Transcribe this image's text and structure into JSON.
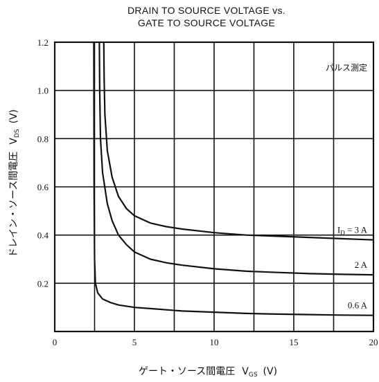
{
  "chart_data": {
    "type": "line",
    "title_line1": "DRAIN TO SOURCE VOLTAGE vs.",
    "title_line2": "GATE TO SOURCE VOLTAGE",
    "xlabel_main": "ゲート・ソース間電圧",
    "xlabel_symbol": "V",
    "xlabel_sub": "GS",
    "xlabel_unit": "(V)",
    "ylabel_main": "ドレイン・ソース間電圧",
    "ylabel_symbol": "V",
    "ylabel_sub": "DS",
    "ylabel_unit": "(V)",
    "note": "パルス測定",
    "xlim": [
      0,
      20
    ],
    "ylim": [
      0,
      1.2
    ],
    "x_ticks": [
      {
        "value": 0,
        "label": "0"
      },
      {
        "value": 5,
        "label": "5"
      },
      {
        "value": 10,
        "label": "10"
      },
      {
        "value": 15,
        "label": "15"
      },
      {
        "value": 20,
        "label": "20"
      }
    ],
    "y_ticks": [
      {
        "value": 0.2,
        "label": "0.2"
      },
      {
        "value": 0.4,
        "label": "0.4"
      },
      {
        "value": 0.6,
        "label": "0.6"
      },
      {
        "value": 0.8,
        "label": "0.8"
      },
      {
        "value": 1.0,
        "label": "1.0"
      },
      {
        "value": 1.2,
        "label": "1.2"
      }
    ],
    "grid_x": [
      2.5,
      5,
      7.5,
      10,
      12.5,
      15,
      17.5
    ],
    "grid_y": [
      0.2,
      0.4,
      0.6,
      0.8,
      1.0
    ],
    "series": [
      {
        "label_main": "I",
        "label_sub": "D",
        "label_rest": " = 3 A",
        "x": [
          3.08,
          3.1,
          3.15,
          3.3,
          3.6,
          4.0,
          4.5,
          5.0,
          6.0,
          7.0,
          8.0,
          10.0,
          12.0,
          14.0,
          16.0,
          18.0,
          20.0
        ],
        "y": [
          1.2,
          1.05,
          0.9,
          0.75,
          0.64,
          0.56,
          0.51,
          0.48,
          0.45,
          0.435,
          0.425,
          0.41,
          0.4,
          0.395,
          0.39,
          0.385,
          0.38
        ]
      },
      {
        "label_main": "2 A",
        "label_sub": "",
        "label_rest": "",
        "x": [
          2.8,
          2.82,
          2.87,
          3.0,
          3.3,
          3.6,
          4.0,
          4.5,
          5.0,
          6.0,
          7.0,
          8.0,
          10.0,
          12.0,
          14.0,
          16.0,
          18.0,
          20.0
        ],
        "y": [
          1.2,
          1.0,
          0.8,
          0.66,
          0.53,
          0.46,
          0.4,
          0.36,
          0.33,
          0.3,
          0.285,
          0.275,
          0.26,
          0.25,
          0.245,
          0.24,
          0.237,
          0.235
        ]
      },
      {
        "label_main": "0.6 A",
        "label_sub": "",
        "label_rest": "",
        "x": [
          2.45,
          2.47,
          2.5,
          2.55,
          2.7,
          3.0,
          3.5,
          4.0,
          5.0,
          6.0,
          8.0,
          10.0,
          12.0,
          14.0,
          16.0,
          18.0,
          20.0
        ],
        "y": [
          1.2,
          0.6,
          0.3,
          0.2,
          0.16,
          0.135,
          0.12,
          0.11,
          0.1,
          0.095,
          0.085,
          0.08,
          0.075,
          0.072,
          0.07,
          0.068,
          0.067
        ]
      }
    ]
  }
}
